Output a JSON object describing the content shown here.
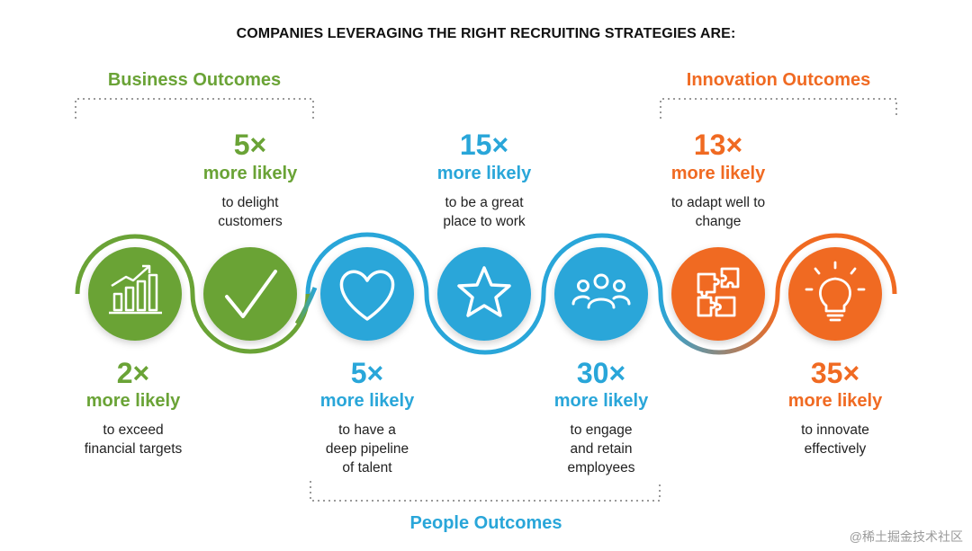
{
  "title": "COMPANIES LEVERAGING THE RIGHT RECRUITING STRATEGIES ARE:",
  "groups": {
    "business": "Business Outcomes",
    "innovation": "Innovation Outcomes",
    "people": "People Outcomes"
  },
  "colors": {
    "green": "#6aa336",
    "blue": "#29a6d9",
    "orange": "#f06a22",
    "dotted": "#9a9a9a"
  },
  "items": [
    {
      "multiplier": "2×",
      "likely": "more likely",
      "desc": [
        "to exceed",
        "financial targets"
      ],
      "icon": "bar-chart-growth-icon"
    },
    {
      "multiplier": "5×",
      "likely": "more likely",
      "desc": [
        "to delight",
        "customers"
      ],
      "icon": "checkmark-icon"
    },
    {
      "multiplier": "5×",
      "likely": "more likely",
      "desc": [
        "to have a",
        "deep pipeline",
        "of talent"
      ],
      "icon": "heart-icon"
    },
    {
      "multiplier": "15×",
      "likely": "more likely",
      "desc": [
        "to be a great",
        "place to work"
      ],
      "icon": "star-icon"
    },
    {
      "multiplier": "30×",
      "likely": "more likely",
      "desc": [
        "to engage",
        "and retain",
        "employees"
      ],
      "icon": "people-group-icon"
    },
    {
      "multiplier": "13×",
      "likely": "more likely",
      "desc": [
        "to adapt well to",
        "change"
      ],
      "icon": "puzzle-icon"
    },
    {
      "multiplier": "35×",
      "likely": "more likely",
      "desc": [
        "to innovate",
        "effectively"
      ],
      "icon": "lightbulb-icon"
    }
  ],
  "watermark": "@稀土掘金技术社区"
}
